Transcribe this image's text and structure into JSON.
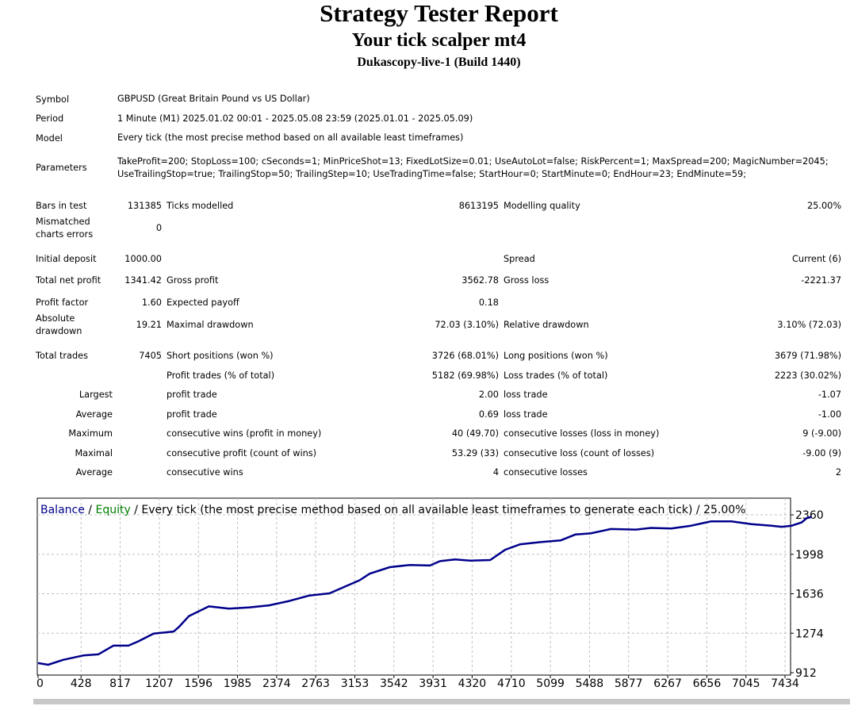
{
  "header": {
    "title": "Strategy Tester Report",
    "subtitle": "Your tick scalper mt4",
    "server": "Dukascopy-live-1 (Build 1440)"
  },
  "info": [
    {
      "label": "Symbol",
      "value": "GBPUSD (Great Britain Pound vs US Dollar)"
    },
    {
      "label": "Period",
      "value": "1 Minute (M1) 2025.01.02 00:01 - 2025.05.08 23:59 (2025.01.01 - 2025.05.09)"
    },
    {
      "label": "Model",
      "value": "Every tick (the most precise method based on all available least timeframes)"
    },
    {
      "label": "Parameters",
      "value": "TakeProfit=200; StopLoss=100; cSeconds=1; MinPriceShot=13; FixedLotSize=0.01; UseAutoLot=false; RiskPercent=1; MaxSpread=200; MagicNumber=2045; UseTrailingStop=true; TrailingStop=50; TrailingStep=10; UseTradingTime=false; StartHour=0; StartMinute=0; EndHour=23; EndMinute=59;"
    }
  ],
  "sections": [
    [
      [
        "Bars in test",
        "131385",
        "Ticks modelled",
        "8613195",
        "Modelling quality",
        "25.00%"
      ],
      [
        "Mismatched charts errors",
        "0",
        "",
        "",
        "",
        ""
      ]
    ],
    [
      [
        "Initial deposit",
        "1000.00",
        "",
        "",
        "Spread",
        "Current (6)"
      ],
      [
        "Total net profit",
        "1341.42",
        "Gross profit",
        "3562.78",
        "Gross loss",
        "-2221.37"
      ],
      [
        "Profit factor",
        "1.60",
        "Expected payoff",
        "0.18",
        "",
        ""
      ],
      [
        "Absolute drawdown",
        "19.21",
        "Maximal drawdown",
        "72.03 (3.10%)",
        "Relative drawdown",
        "3.10% (72.03)"
      ]
    ],
    [
      [
        "Total trades",
        "7405",
        "Short positions (won %)",
        "3726 (68.01%)",
        "Long positions (won %)",
        "3679 (71.98%)"
      ],
      [
        "",
        "",
        "Profit trades (% of total)",
        "5182 (69.98%)",
        "Loss trades (% of total)",
        "2223 (30.02%)"
      ],
      [
        "Largest",
        "",
        "profit trade",
        "2.00",
        "loss trade",
        "-1.07"
      ],
      [
        "Average",
        "",
        "profit trade",
        "0.69",
        "loss trade",
        "-1.00"
      ],
      [
        "Maximum",
        "",
        "consecutive wins (profit in money)",
        "40 (49.70)",
        "consecutive losses (loss in money)",
        "9 (-9.00)"
      ],
      [
        "Maximal",
        "",
        "consecutive profit (count of wins)",
        "53.29 (33)",
        "consecutive loss (count of losses)",
        "-9.00 (9)"
      ],
      [
        "Average",
        "",
        "consecutive wins",
        "4",
        "consecutive losses",
        "2"
      ]
    ]
  ],
  "chart_data": {
    "type": "line",
    "legend": {
      "balance": "Balance",
      "sep1": " / ",
      "equity": "Equity",
      "rest": " / Every tick (the most precise method based on all available least timeframes to generate each tick) / 25.00%"
    },
    "colors": {
      "balance": "#00008b",
      "equity": "#008000",
      "grid": "#c0c0c0"
    },
    "x_ticks": [
      0,
      428,
      817,
      1207,
      1596,
      1985,
      2374,
      2763,
      3153,
      3542,
      3931,
      4320,
      4710,
      5099,
      5488,
      5877,
      6267,
      6656,
      7045,
      7434
    ],
    "y_ticks": [
      912,
      1274,
      1636,
      1998,
      2360
    ],
    "xlim": [
      0,
      7434
    ],
    "ylim": [
      912,
      2360
    ],
    "series": [
      {
        "name": "Balance",
        "x": [
          0,
          100,
          250,
          450,
          600,
          750,
          900,
          1000,
          1150,
          1350,
          1400,
          1500,
          1700,
          1900,
          2100,
          2300,
          2500,
          2700,
          2900,
          3000,
          3200,
          3300,
          3500,
          3700,
          3900,
          4000,
          4150,
          4300,
          4500,
          4650,
          4800,
          5000,
          5200,
          5350,
          5500,
          5700,
          5950,
          6100,
          6300,
          6500,
          6700,
          6900,
          7100,
          7300,
          7400,
          7500,
          7600,
          7650,
          7700
        ],
        "y": [
          1000,
          985,
          1030,
          1070,
          1080,
          1160,
          1160,
          1200,
          1270,
          1290,
          1330,
          1430,
          1520,
          1500,
          1510,
          1530,
          1570,
          1620,
          1640,
          1680,
          1760,
          1820,
          1880,
          1900,
          1895,
          1935,
          1950,
          1940,
          1945,
          2040,
          2090,
          2110,
          2125,
          2180,
          2190,
          2230,
          2225,
          2240,
          2235,
          2260,
          2300,
          2300,
          2275,
          2260,
          2250,
          2260,
          2290,
          2330,
          2341
        ]
      }
    ]
  }
}
